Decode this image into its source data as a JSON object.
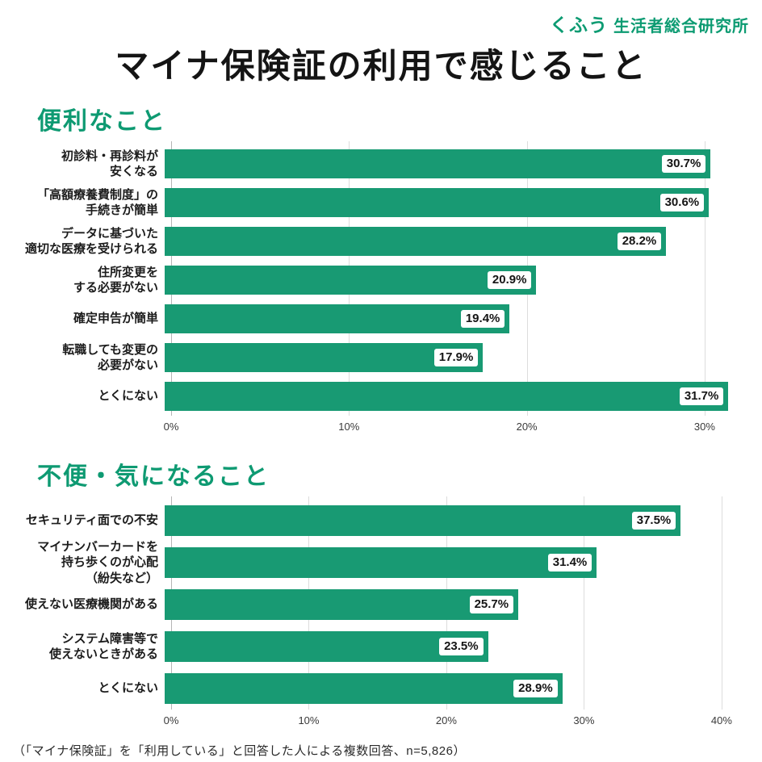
{
  "colors": {
    "accent": "#0c9b72",
    "bar": "#189a73",
    "grid": "#dcdcdc",
    "title_text": "#141414"
  },
  "logo": {
    "brand": "くふう",
    "name": "生活者総合研究所"
  },
  "title": "マイナ保険証の利用で感じること",
  "footer": "（「マイナ保険証」を「利用している」と回答した人による複数回答、n=5,826）",
  "chart_data": [
    {
      "type": "bar",
      "orientation": "horizontal",
      "title": "便利なこと",
      "categories": [
        "初診料・再診料が\n安くなる",
        "「高額療養費制度」の\n手続きが簡単",
        "データに基づいた\n適切な医療を受けられる",
        "住所変更を\nする必要がない",
        "確定申告が簡単",
        "転職しても変更の\n必要がない",
        "とくにない"
      ],
      "values": [
        30.7,
        30.6,
        28.2,
        20.9,
        19.4,
        17.9,
        31.7
      ],
      "value_labels": [
        "30.7%",
        "30.6%",
        "28.2%",
        "20.9%",
        "19.4%",
        "17.9%",
        "31.7%"
      ],
      "unit": "%",
      "xlim": [
        0,
        32.5
      ],
      "xticks": [
        "0%",
        "10%",
        "20%",
        "30%"
      ],
      "xtick_values": [
        0,
        10,
        20,
        30
      ],
      "grid": true,
      "bar_color": "#189a73",
      "label_style": "white-pill-inside-bar-end"
    },
    {
      "type": "bar",
      "orientation": "horizontal",
      "title": "不便・気になること",
      "categories": [
        "セキュリティ面での不安",
        "マイナンバーカードを\n持ち歩くのが心配\n（紛失など）",
        "使えない医療機関がある",
        "システム障害等で\n使えないときがある",
        "とくにない"
      ],
      "values": [
        37.5,
        31.4,
        25.7,
        23.5,
        28.9
      ],
      "value_labels": [
        "37.5%",
        "31.4%",
        "25.7%",
        "23.5%",
        "28.9%"
      ],
      "unit": "%",
      "xlim": [
        0,
        42
      ],
      "xticks": [
        "0%",
        "10%",
        "20%",
        "30%",
        "40%"
      ],
      "xtick_values": [
        0,
        10,
        20,
        30,
        40
      ],
      "grid": true,
      "bar_color": "#189a73",
      "label_style": "white-pill-inside-bar-end"
    }
  ]
}
